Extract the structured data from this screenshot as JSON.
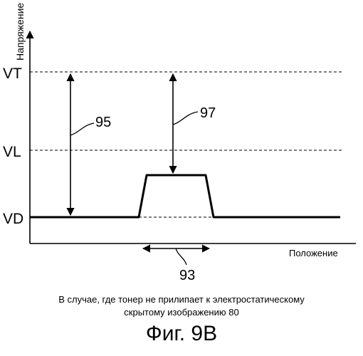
{
  "diagram": {
    "y_axis_label": "Напряжение",
    "x_axis_label": "Положение",
    "levels": [
      "VT",
      "VL",
      "VD"
    ],
    "callouts": [
      "95",
      "97",
      "93"
    ]
  },
  "caption": {
    "line1": "В случае, где тонер не прилипает к электростатическому",
    "line2": "скрытому изображению 80"
  },
  "figure_label": "Фиг. 9В"
}
